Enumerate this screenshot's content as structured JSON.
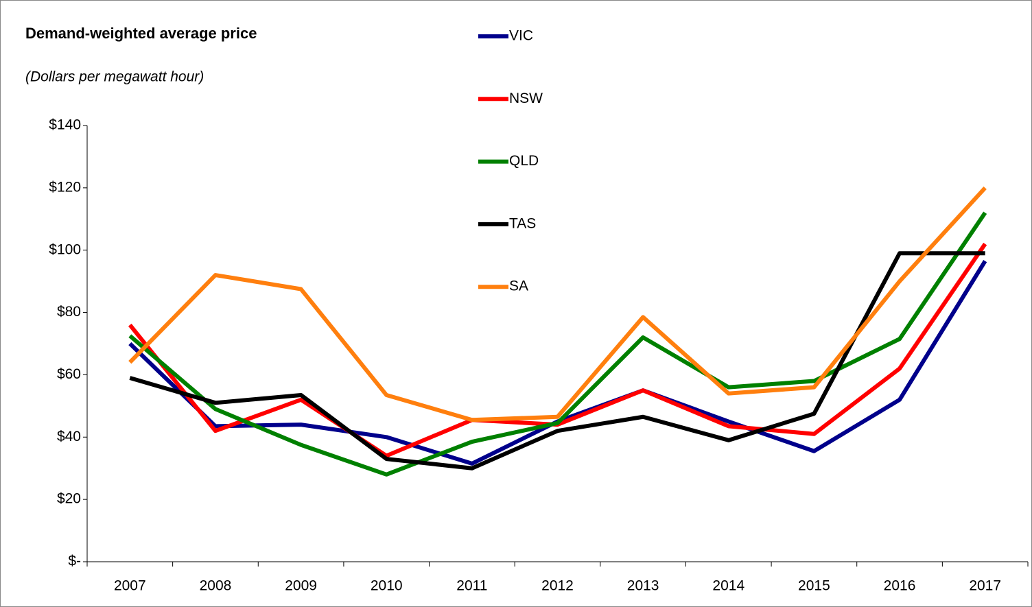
{
  "chart_data": {
    "type": "line",
    "title": "Demand-weighted average price",
    "subtitle": "(Dollars per megawatt hour)",
    "categories": [
      "2007",
      "2008",
      "2009",
      "2010",
      "2011",
      "2012",
      "2013",
      "2014",
      "2015",
      "2016",
      "2017"
    ],
    "series": [
      {
        "name": "VIC",
        "color": "#00008b",
        "values": [
          70,
          43.5,
          44,
          40,
          31.5,
          45,
          55,
          45,
          35.5,
          52,
          96.5
        ]
      },
      {
        "name": "NSW",
        "color": "#ff0000",
        "values": [
          76,
          42,
          52,
          34,
          45.5,
          44,
          55,
          43.5,
          41,
          62,
          102
        ]
      },
      {
        "name": "QLD",
        "color": "#008000",
        "values": [
          72.5,
          49,
          37.5,
          28,
          38.5,
          44.5,
          72,
          56,
          58,
          71.5,
          112
        ]
      },
      {
        "name": "TAS",
        "color": "#000000",
        "values": [
          59,
          51,
          53.5,
          33,
          30,
          42,
          46.5,
          39,
          47.5,
          99,
          99
        ]
      },
      {
        "name": "SA",
        "color": "#ff7f0e",
        "values": [
          64,
          92,
          87.5,
          53.5,
          45.5,
          46.5,
          78.5,
          54,
          56,
          90,
          120
        ]
      }
    ],
    "ylim": [
      0,
      140
    ],
    "yticks": [
      {
        "value": 0,
        "label": "$-"
      },
      {
        "value": 20,
        "label": "$20"
      },
      {
        "value": 40,
        "label": "$40"
      },
      {
        "value": 60,
        "label": "$60"
      },
      {
        "value": 80,
        "label": "$80"
      },
      {
        "value": 100,
        "label": "$100"
      },
      {
        "value": 120,
        "label": "$120"
      },
      {
        "value": 140,
        "label": "$140"
      }
    ],
    "grid": false,
    "legend": "top"
  }
}
